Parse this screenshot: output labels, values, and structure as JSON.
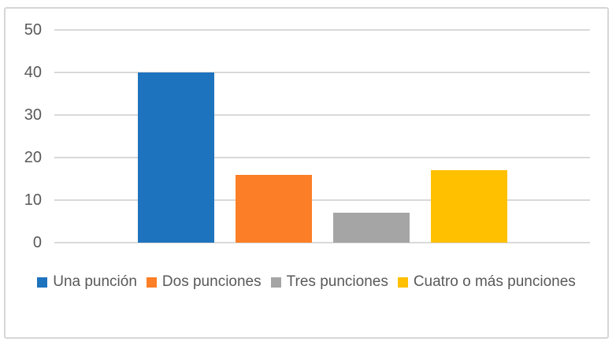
{
  "chart_data": {
    "type": "bar",
    "title": "",
    "xlabel": "",
    "ylabel": "",
    "categories": [
      ""
    ],
    "series": [
      {
        "name": "Una punción",
        "values": [
          40
        ],
        "color": "#1e73be"
      },
      {
        "name": "Dos punciones",
        "values": [
          16
        ],
        "color": "#fc7e26"
      },
      {
        "name": "Tres punciones",
        "values": [
          7
        ],
        "color": "#a5a5a5"
      },
      {
        "name": "Cuatro o más punciones",
        "values": [
          17
        ],
        "color": "#ffc000"
      }
    ],
    "yticks": [
      "0",
      "10",
      "20",
      "30",
      "40",
      "50"
    ],
    "ylim": [
      0,
      50
    ],
    "grid": true,
    "legend_position": "bottom"
  },
  "colors": {
    "background": "#ffffff",
    "frame_border": "#d6d6d6",
    "gridline": "#d9d9d9",
    "axis_text": "#595959",
    "legend_text": "#595959"
  }
}
